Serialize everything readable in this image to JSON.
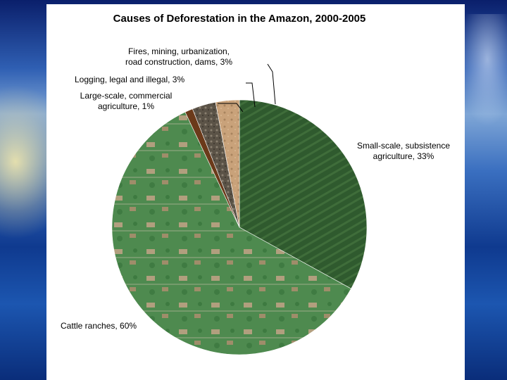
{
  "chart_data": {
    "type": "pie",
    "title": "Causes of Deforestation in the Amazon, 2000-2005",
    "slices": [
      {
        "label": "Small-scale, subsistence agriculture, 33%",
        "value": 33,
        "color": "#2f5a2e"
      },
      {
        "label": "Cattle ranches, 60%",
        "value": 60,
        "color": "#4e8a4f"
      },
      {
        "label": "Large-scale, commercial agriculture, 1%",
        "value": 1,
        "color": "#6b3a1a"
      },
      {
        "label": "Logging, legal and illegal, 3%",
        "value": 3,
        "color": "#5b5347"
      },
      {
        "label": "Fires, mining, urbanization, road construction, dams, 3%",
        "value": 3,
        "color": "#c9a27a"
      }
    ],
    "labels": {
      "fires_line1": "Fires, mining, urbanization,",
      "fires_line2": "road construction, dams, 3%",
      "logging": "Logging, legal and illegal, 3%",
      "large_line1": "Large-scale, commercial",
      "large_line2": "agriculture, 1%",
      "small_line1": "Small-scale, subsistence",
      "small_line2": "agriculture, 33%",
      "cattle": "Cattle ranches, 60%"
    }
  }
}
